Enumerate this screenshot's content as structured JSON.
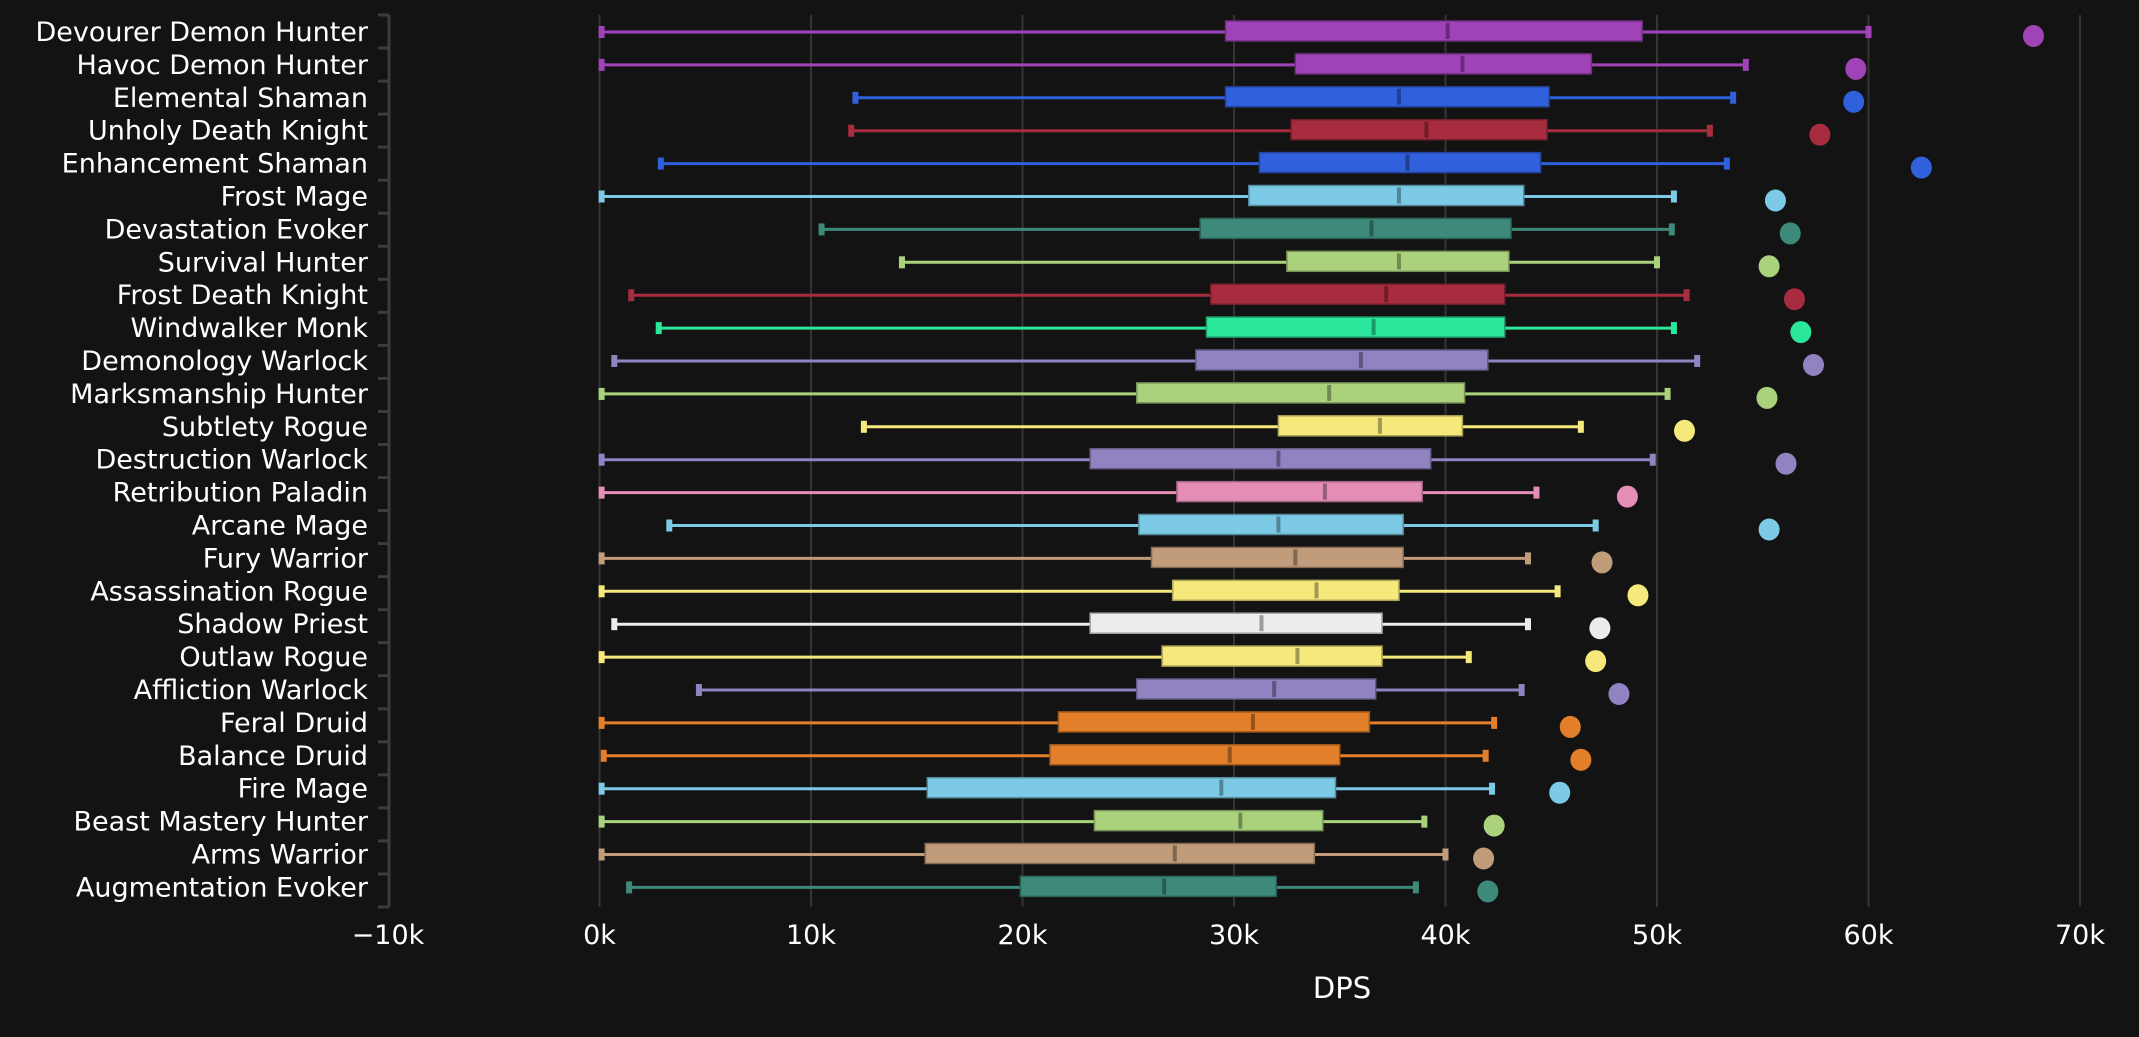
{
  "chart_data": {
    "type": "boxplot",
    "title": "",
    "xlabel": "DPS",
    "ylabel": "",
    "xlim": [
      -10000,
      70000
    ],
    "x_ticks": [
      -10000,
      0,
      10000,
      20000,
      30000,
      40000,
      50000,
      60000,
      70000
    ],
    "x_tick_labels": [
      "−10k",
      "0k",
      "10k",
      "20k",
      "30k",
      "40k",
      "50k",
      "60k",
      "70k"
    ],
    "grid": "vertical",
    "legend": "none",
    "background": "#131313",
    "series": [
      {
        "name": "Devourer Demon Hunter",
        "color": "#a043b8",
        "min": 100,
        "q1": 29600,
        "median": 40100,
        "q3": 49300,
        "max": 60000,
        "top": 67800
      },
      {
        "name": "Havoc Demon Hunter",
        "color": "#a043b8",
        "min": 100,
        "q1": 32900,
        "median": 40800,
        "q3": 46900,
        "max": 54200,
        "top": 59400
      },
      {
        "name": "Elemental Shaman",
        "color": "#3060dc",
        "min": 12100,
        "q1": 29600,
        "median": 37800,
        "q3": 44900,
        "max": 53600,
        "top": 59300
      },
      {
        "name": "Unholy Death Knight",
        "color": "#a82c3f",
        "min": 11900,
        "q1": 32700,
        "median": 39100,
        "q3": 44800,
        "max": 52500,
        "top": 57700
      },
      {
        "name": "Enhancement Shaman",
        "color": "#3060dc",
        "min": 2900,
        "q1": 31200,
        "median": 38200,
        "q3": 44500,
        "max": 53300,
        "top": 62500
      },
      {
        "name": "Frost Mage",
        "color": "#7ccae5",
        "min": 100,
        "q1": 30700,
        "median": 37800,
        "q3": 43700,
        "max": 50800,
        "top": 55600
      },
      {
        "name": "Devastation Evoker",
        "color": "#3d8a7a",
        "min": 10500,
        "q1": 28400,
        "median": 36500,
        "q3": 43100,
        "max": 50700,
        "top": 56300
      },
      {
        "name": "Survival Hunter",
        "color": "#aad27d",
        "min": 14300,
        "q1": 32500,
        "median": 37800,
        "q3": 43000,
        "max": 50000,
        "top": 55300
      },
      {
        "name": "Frost Death Knight",
        "color": "#a82c3f",
        "min": 1500,
        "q1": 28900,
        "median": 37200,
        "q3": 42800,
        "max": 51400,
        "top": 56500
      },
      {
        "name": "Windwalker Monk",
        "color": "#2ae79b",
        "min": 2800,
        "q1": 28700,
        "median": 36600,
        "q3": 42800,
        "max": 50800,
        "top": 56800
      },
      {
        "name": "Demonology Warlock",
        "color": "#9182c1",
        "min": 700,
        "q1": 28200,
        "median": 36000,
        "q3": 42000,
        "max": 51900,
        "top": 57400
      },
      {
        "name": "Marksmanship Hunter",
        "color": "#aad27d",
        "min": 100,
        "q1": 25400,
        "median": 34500,
        "q3": 40900,
        "max": 50500,
        "top": 55200
      },
      {
        "name": "Subtlety Rogue",
        "color": "#f6e97c",
        "min": 12500,
        "q1": 32100,
        "median": 36900,
        "q3": 40800,
        "max": 46400,
        "top": 51300
      },
      {
        "name": "Destruction Warlock",
        "color": "#9182c1",
        "min": 100,
        "q1": 23200,
        "median": 32100,
        "q3": 39300,
        "max": 49800,
        "top": 56100
      },
      {
        "name": "Retribution Paladin",
        "color": "#e48db5",
        "min": 100,
        "q1": 27300,
        "median": 34300,
        "q3": 38900,
        "max": 44300,
        "top": 48600
      },
      {
        "name": "Arcane Mage",
        "color": "#7ccae5",
        "min": 3300,
        "q1": 25500,
        "median": 32100,
        "q3": 38000,
        "max": 47100,
        "top": 55300
      },
      {
        "name": "Fury Warrior",
        "color": "#c19c7a",
        "min": 100,
        "q1": 26100,
        "median": 32900,
        "q3": 38000,
        "max": 43900,
        "top": 47400
      },
      {
        "name": "Assassination Rogue",
        "color": "#f6e97c",
        "min": 100,
        "q1": 27100,
        "median": 33900,
        "q3": 37800,
        "max": 45300,
        "top": 49100
      },
      {
        "name": "Shadow Priest",
        "color": "#ececec",
        "min": 700,
        "q1": 23200,
        "median": 31300,
        "q3": 37000,
        "max": 43900,
        "top": 47300
      },
      {
        "name": "Outlaw Rogue",
        "color": "#f6e97c",
        "min": 100,
        "q1": 26600,
        "median": 33000,
        "q3": 37000,
        "max": 41100,
        "top": 47100
      },
      {
        "name": "Affliction Warlock",
        "color": "#9182c1",
        "min": 4700,
        "q1": 25400,
        "median": 31900,
        "q3": 36700,
        "max": 43600,
        "top": 48200
      },
      {
        "name": "Feral Druid",
        "color": "#e37f2a",
        "min": 100,
        "q1": 21700,
        "median": 30900,
        "q3": 36400,
        "max": 42300,
        "top": 45900
      },
      {
        "name": "Balance Druid",
        "color": "#e37f2a",
        "min": 200,
        "q1": 21300,
        "median": 29800,
        "q3": 35000,
        "max": 41900,
        "top": 46400
      },
      {
        "name": "Fire Mage",
        "color": "#7ccae5",
        "min": 100,
        "q1": 15500,
        "median": 29400,
        "q3": 34800,
        "max": 42200,
        "top": 45400
      },
      {
        "name": "Beast Mastery Hunter",
        "color": "#aad27d",
        "min": 100,
        "q1": 23400,
        "median": 30300,
        "q3": 34200,
        "max": 39000,
        "top": 42300
      },
      {
        "name": "Arms Warrior",
        "color": "#c19c7a",
        "min": 100,
        "q1": 15400,
        "median": 27200,
        "q3": 33800,
        "max": 40000,
        "top": 41800
      },
      {
        "name": "Augmentation Evoker",
        "color": "#3d8a7a",
        "min": 1400,
        "q1": 19900,
        "median": 26700,
        "q3": 32000,
        "max": 38600,
        "top": 42000
      }
    ]
  }
}
